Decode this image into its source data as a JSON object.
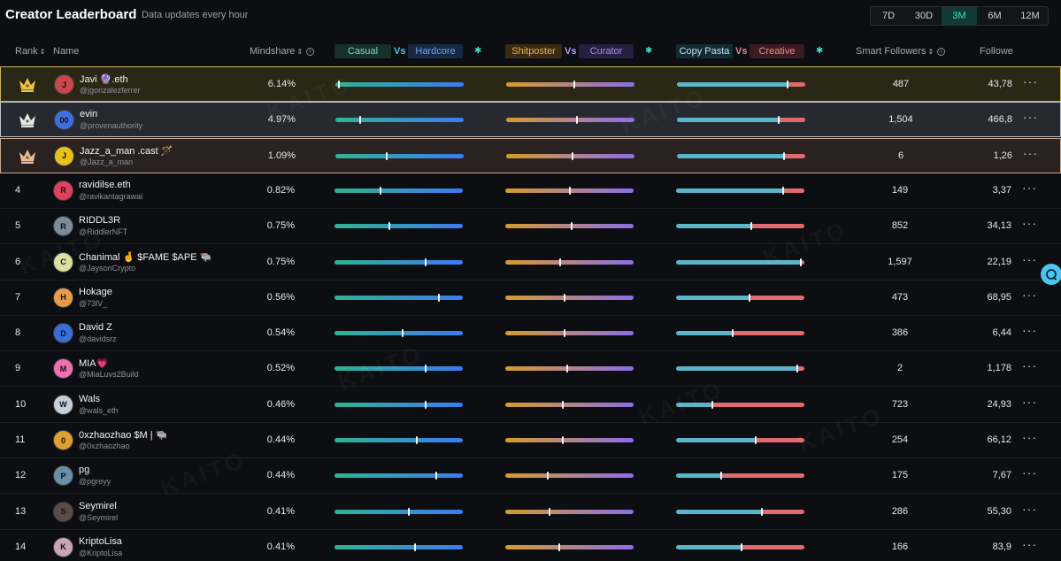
{
  "header": {
    "title": "Creator Leaderboard",
    "subtitle": "Data updates every hour",
    "periods": [
      {
        "label": "7D",
        "active": false
      },
      {
        "label": "30D",
        "active": false
      },
      {
        "label": "3M",
        "active": true
      },
      {
        "label": "6M",
        "active": false
      },
      {
        "label": "12M",
        "active": false
      }
    ]
  },
  "columns": {
    "rank": "Rank",
    "name": "Name",
    "mindshare": "Mindshare",
    "casual": "Casual",
    "vs": "Vs",
    "hardcore": "Hardcore",
    "shitposter": "Shitposter",
    "curator": "Curator",
    "copy_pasta": "Copy Pasta",
    "creative": "Creative",
    "smart_followers": "Smart Followers",
    "followers": "Followe"
  },
  "watermark": "KAITO",
  "colors": {
    "casual_gradient": [
      "#2fb38f",
      "#3b7bf2"
    ],
    "shit_gradient": [
      "#d79a2b",
      "#8b6ee8"
    ],
    "copy_gradient": [
      "#5bb5c9",
      "#e06a6e"
    ],
    "accent": "#3fe0c5",
    "chat": "#49c6f0"
  },
  "rows": [
    {
      "rank": "1",
      "name": "Javi 🔮.eth",
      "handle": "@jgonzalezferrer",
      "mindshare": "6.14%",
      "casual": 0.02,
      "shit": 0.53,
      "copy": 0.87,
      "smart_followers": "487",
      "followers": "43,78",
      "avatar_color": "#c9464a",
      "avatar_text": "J"
    },
    {
      "rank": "2",
      "name": "evin",
      "handle": "@provenauthority",
      "mindshare": "4.97%",
      "casual": 0.19,
      "shit": 0.55,
      "copy": 0.8,
      "smart_followers": "1,504",
      "followers": "466,8",
      "avatar_color": "#3d6fe0",
      "avatar_text": "00"
    },
    {
      "rank": "3",
      "name": "Jazz_a_man .cast 🪄",
      "handle": "@Jazz_a_man",
      "mindshare": "1.09%",
      "casual": 0.4,
      "shit": 0.52,
      "copy": 0.84,
      "smart_followers": "6",
      "followers": "1,26",
      "avatar_color": "#e8c21c",
      "avatar_text": "J"
    },
    {
      "rank": "4",
      "name": "ravidilse.eth",
      "handle": "@ravikantagrawal",
      "mindshare": "0.82%",
      "casual": 0.36,
      "shit": 0.5,
      "copy": 0.84,
      "smart_followers": "149",
      "followers": "3,37",
      "avatar_color": "#e0405a",
      "avatar_text": "R"
    },
    {
      "rank": "5",
      "name": "RIDDL3R",
      "handle": "@RiddlerNFT",
      "mindshare": "0.75%",
      "casual": 0.43,
      "shit": 0.52,
      "copy": 0.59,
      "smart_followers": "852",
      "followers": "34,13",
      "avatar_color": "#7a8c98",
      "avatar_text": "R"
    },
    {
      "rank": "6",
      "name": "Chanimal 🤞 $FAME $APE 🐃",
      "handle": "@JaysonCrypto",
      "mindshare": "0.75%",
      "casual": 0.71,
      "shit": 0.43,
      "copy": 0.98,
      "smart_followers": "1,597",
      "followers": "22,19",
      "avatar_color": "#d9e0a0",
      "avatar_text": "C"
    },
    {
      "rank": "7",
      "name": "Hokage",
      "handle": "@73lV_",
      "mindshare": "0.56%",
      "casual": 0.82,
      "shit": 0.46,
      "copy": 0.57,
      "smart_followers": "473",
      "followers": "68,95",
      "avatar_color": "#e79a4a",
      "avatar_text": "H"
    },
    {
      "rank": "8",
      "name": "David Z",
      "handle": "@davidsrz",
      "mindshare": "0.54%",
      "casual": 0.53,
      "shit": 0.46,
      "copy": 0.44,
      "smart_followers": "386",
      "followers": "6,44",
      "avatar_color": "#3a6ed8",
      "avatar_text": "D"
    },
    {
      "rank": "9",
      "name": "MIA💗",
      "handle": "@MiaLuvs2Build",
      "mindshare": "0.52%",
      "casual": 0.71,
      "shit": 0.48,
      "copy": 0.95,
      "smart_followers": "2",
      "followers": "1,178",
      "avatar_color": "#f06fb0",
      "avatar_text": "M"
    },
    {
      "rank": "10",
      "name": "Wals",
      "handle": "@wals_eth",
      "mindshare": "0.46%",
      "casual": 0.71,
      "shit": 0.45,
      "copy": 0.28,
      "smart_followers": "723",
      "followers": "24,93",
      "avatar_color": "#c7d0d8",
      "avatar_text": "W"
    },
    {
      "rank": "11",
      "name": "0xzhaozhao $M | 🐃",
      "handle": "@0xzhaozhao",
      "mindshare": "0.44%",
      "casual": 0.64,
      "shit": 0.45,
      "copy": 0.62,
      "smart_followers": "254",
      "followers": "66,12",
      "avatar_color": "#e0a030",
      "avatar_text": "0"
    },
    {
      "rank": "12",
      "name": "pg",
      "handle": "@pgreyy",
      "mindshare": "0.44%",
      "casual": 0.8,
      "shit": 0.33,
      "copy": 0.35,
      "smart_followers": "175",
      "followers": "7,67",
      "avatar_color": "#6b8fa8",
      "avatar_text": "P"
    },
    {
      "rank": "13",
      "name": "Seymirel",
      "handle": "@Seymirel",
      "mindshare": "0.41%",
      "casual": 0.58,
      "shit": 0.34,
      "copy": 0.67,
      "smart_followers": "286",
      "followers": "55,30",
      "avatar_color": "#5a4a48",
      "avatar_text": "S"
    },
    {
      "rank": "14",
      "name": "KriptoLisa",
      "handle": "@KriptoLisa",
      "mindshare": "0.41%",
      "casual": 0.63,
      "shit": 0.42,
      "copy": 0.51,
      "smart_followers": "166",
      "followers": "83,9",
      "avatar_color": "#c9a4b4",
      "avatar_text": "K"
    }
  ]
}
